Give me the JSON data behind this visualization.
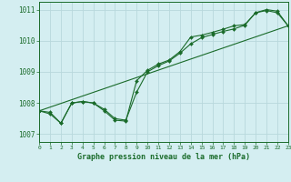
{
  "title": "Graphe pression niveau de la mer (hPa)",
  "bg_color": "#d4eef1",
  "grid_color": "#b8d8dc",
  "line_color": "#1a6b2a",
  "xlim": [
    0,
    23
  ],
  "ylim": [
    1006.75,
    1011.25
  ],
  "yticks": [
    1007,
    1008,
    1009,
    1010,
    1011
  ],
  "xtick_labels": [
    "0",
    "1",
    "2",
    "3",
    "4",
    "5",
    "6",
    "7",
    "8",
    "9",
    "10",
    "11",
    "12",
    "13",
    "14",
    "15",
    "16",
    "17",
    "18",
    "19",
    "20",
    "21",
    "22",
    "23"
  ],
  "series1_x": [
    0,
    1,
    2,
    3,
    4,
    5,
    6,
    7,
    8,
    9,
    10,
    11,
    12,
    13,
    14,
    15,
    16,
    17,
    18,
    19,
    20,
    21,
    22,
    23
  ],
  "series1_y": [
    1007.75,
    1007.7,
    1007.35,
    1008.0,
    1008.05,
    1008.0,
    1007.8,
    1007.5,
    1007.45,
    1008.35,
    1009.0,
    1009.2,
    1009.35,
    1009.6,
    1009.9,
    1010.1,
    1010.2,
    1010.3,
    1010.38,
    1010.5,
    1010.9,
    1011.0,
    1010.95,
    1010.48
  ],
  "series2_x": [
    0,
    1,
    2,
    3,
    4,
    5,
    6,
    7,
    8,
    9,
    10,
    11,
    12,
    13,
    14,
    15,
    16,
    17,
    18,
    19,
    20,
    21,
    22,
    23
  ],
  "series2_y": [
    1007.75,
    1007.65,
    1007.35,
    1008.0,
    1008.05,
    1008.0,
    1007.75,
    1007.45,
    1007.42,
    1008.72,
    1009.05,
    1009.25,
    1009.38,
    1009.65,
    1010.12,
    1010.18,
    1010.27,
    1010.37,
    1010.48,
    1010.52,
    1010.9,
    1010.97,
    1010.9,
    1010.48
  ],
  "trend_x": [
    0,
    23
  ],
  "trend_y": [
    1007.75,
    1010.48
  ]
}
